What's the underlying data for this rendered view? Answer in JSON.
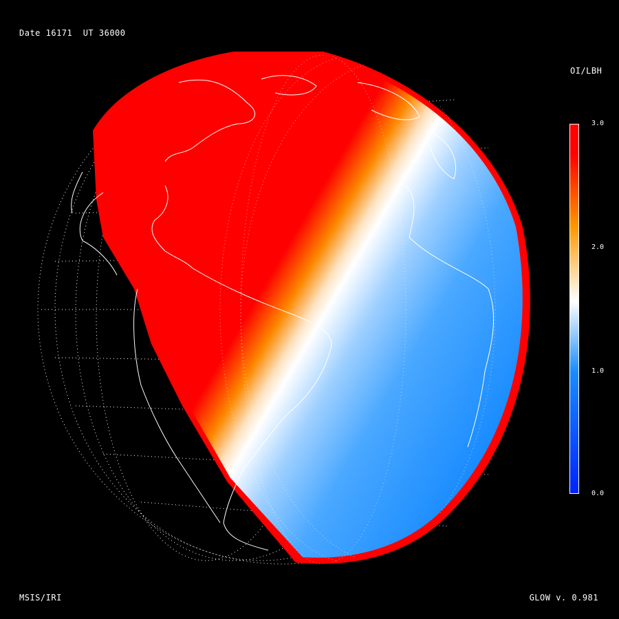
{
  "header": {
    "date_label": "Date 16171",
    "ut_label": "UT 36000"
  },
  "footer": {
    "model_label": "MSIS/IRI",
    "version_label": "GLOW v. 0.981"
  },
  "colorbar": {
    "title": "OI/LBH",
    "ticks": [
      "3.0",
      "2.0",
      "1.0",
      "0.0"
    ],
    "colors": {
      "low": "#0022ff",
      "mid_low": "#1a8cff",
      "mid": "#ffffff",
      "mid_high": "#ff9900",
      "high": "#ff0000"
    }
  },
  "map": {
    "ocean_day_color": "#1a8cff",
    "limb_color": "#ff0000",
    "coastline_color": "#ffffff",
    "grid_color": "#ffffff"
  }
}
